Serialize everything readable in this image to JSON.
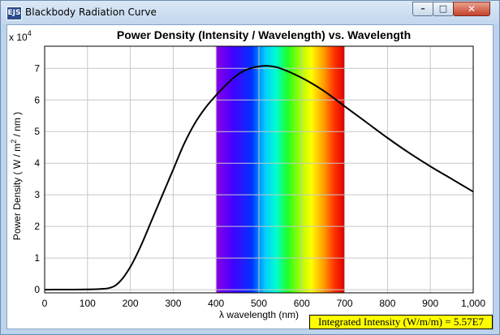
{
  "window": {
    "title": "Blackbody Radiation Curve",
    "app_icon_label": "EJS",
    "buttons": {
      "minimize": "–",
      "maximize": "□",
      "close": "✕"
    }
  },
  "chart_data": {
    "type": "line",
    "title": "Power Density (Intensity / Wavelength) vs. Wavelength",
    "xlabel": "λ wavelength (nm)",
    "ylabel": "Power Density ( W / m",
    "ylabel_sup": "2",
    "ylabel_tail": " / nm )",
    "y_multiplier_prefix": "x 10",
    "y_multiplier_exp": "4",
    "xlim": [
      0,
      1000
    ],
    "ylim": [
      -0.1,
      7.7
    ],
    "x_ticks": [
      "0",
      "100",
      "200",
      "300",
      "400",
      "500",
      "600",
      "700",
      "800",
      "900",
      "1,000"
    ],
    "x_tick_values": [
      0,
      100,
      200,
      300,
      400,
      500,
      600,
      700,
      800,
      900,
      1000
    ],
    "y_ticks": [
      "0",
      "1",
      "2",
      "3",
      "4",
      "5",
      "6",
      "7"
    ],
    "y_tick_values": [
      0,
      1,
      2,
      3,
      4,
      5,
      6,
      7
    ],
    "grid": true,
    "visible_band": {
      "from": 400,
      "to": 700
    },
    "series": [
      {
        "x": [
          0,
          100,
          150,
          175,
          200,
          225,
          250,
          275,
          300,
          325,
          350,
          375,
          400,
          425,
          450,
          475,
          500,
          520,
          550,
          600,
          650,
          700,
          750,
          800,
          850,
          900,
          950,
          1000
        ],
        "y": [
          0,
          0.01,
          0.05,
          0.25,
          0.72,
          1.4,
          2.2,
          3.0,
          3.8,
          4.6,
          5.25,
          5.75,
          6.15,
          6.5,
          6.8,
          6.98,
          7.06,
          7.08,
          7.0,
          6.7,
          6.3,
          5.8,
          5.3,
          4.8,
          4.33,
          3.9,
          3.5,
          3.1
        ]
      }
    ]
  },
  "footer": {
    "integrated_intensity": "Integrated Intensity (W/m/m) = 5.57E7"
  }
}
